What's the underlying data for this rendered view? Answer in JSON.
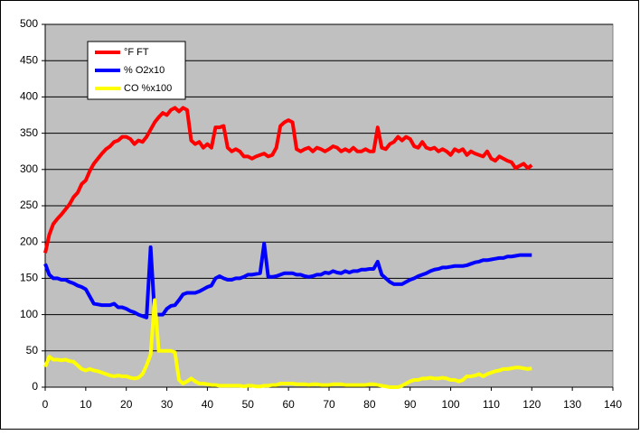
{
  "chart_data": {
    "type": "line",
    "x": [
      0,
      1,
      2,
      3,
      4,
      5,
      6,
      7,
      8,
      9,
      10,
      11,
      12,
      13,
      14,
      15,
      16,
      17,
      18,
      19,
      20,
      21,
      22,
      23,
      24,
      25,
      26,
      27,
      28,
      29,
      30,
      31,
      32,
      33,
      34,
      35,
      36,
      37,
      38,
      39,
      40,
      41,
      42,
      43,
      44,
      45,
      46,
      47,
      48,
      49,
      50,
      51,
      52,
      53,
      54,
      55,
      56,
      57,
      58,
      59,
      60,
      61,
      62,
      63,
      64,
      65,
      66,
      67,
      68,
      69,
      70,
      71,
      72,
      73,
      74,
      75,
      76,
      77,
      78,
      79,
      80,
      81,
      82,
      83,
      84,
      85,
      86,
      87,
      88,
      89,
      90,
      91,
      92,
      93,
      94,
      95,
      96,
      97,
      98,
      99,
      100,
      101,
      102,
      103,
      104,
      105,
      106,
      107,
      108,
      109,
      110,
      111,
      112,
      113,
      114,
      115,
      116,
      117,
      118,
      119,
      120
    ],
    "series": [
      {
        "name": "°F FT",
        "color": "#ff0000",
        "values": [
          185,
          210,
          225,
          232,
          238,
          245,
          252,
          262,
          268,
          280,
          285,
          298,
          308,
          315,
          322,
          328,
          332,
          338,
          340,
          345,
          345,
          342,
          335,
          340,
          338,
          345,
          355,
          365,
          372,
          378,
          375,
          382,
          385,
          380,
          385,
          382,
          340,
          335,
          338,
          330,
          335,
          330,
          358,
          358,
          360,
          330,
          325,
          328,
          325,
          318,
          318,
          315,
          318,
          320,
          322,
          318,
          320,
          330,
          360,
          365,
          368,
          365,
          328,
          325,
          328,
          330,
          325,
          330,
          328,
          325,
          328,
          332,
          330,
          325,
          328,
          325,
          330,
          325,
          325,
          328,
          325,
          325,
          358,
          330,
          328,
          335,
          338,
          345,
          340,
          345,
          342,
          332,
          330,
          338,
          330,
          328,
          330,
          325,
          328,
          325,
          320,
          328,
          325,
          328,
          320,
          325,
          322,
          320,
          318,
          325,
          315,
          312,
          318,
          315,
          312,
          310,
          302,
          305,
          308,
          302,
          306
        ]
      },
      {
        "name": "% O2x10",
        "color": "#0000ff",
        "values": [
          170,
          155,
          150,
          150,
          148,
          148,
          145,
          143,
          140,
          138,
          135,
          125,
          115,
          114,
          113,
          113,
          113,
          115,
          110,
          110,
          108,
          105,
          103,
          100,
          98,
          96,
          193,
          100,
          100,
          100,
          108,
          112,
          113,
          120,
          128,
          130,
          130,
          130,
          132,
          135,
          138,
          140,
          150,
          153,
          150,
          148,
          148,
          150,
          150,
          152,
          155,
          155,
          156,
          157,
          198,
          152,
          152,
          153,
          155,
          157,
          157,
          157,
          155,
          155,
          153,
          152,
          153,
          155,
          155,
          158,
          157,
          160,
          158,
          157,
          160,
          158,
          160,
          160,
          162,
          162,
          163,
          163,
          173,
          155,
          150,
          145,
          142,
          142,
          142,
          145,
          148,
          150,
          153,
          155,
          157,
          160,
          162,
          163,
          165,
          165,
          166,
          167,
          167,
          167,
          168,
          170,
          172,
          173,
          175,
          175,
          176,
          177,
          178,
          178,
          180,
          180,
          181,
          182,
          182,
          182,
          182
        ]
      },
      {
        "name": "CO %x100",
        "color": "#ffff00",
        "values": [
          28,
          42,
          38,
          38,
          37,
          38,
          36,
          35,
          30,
          25,
          23,
          25,
          23,
          22,
          20,
          18,
          16,
          15,
          16,
          15,
          15,
          13,
          12,
          13,
          18,
          30,
          45,
          120,
          50,
          50,
          50,
          50,
          48,
          10,
          5,
          8,
          12,
          8,
          5,
          5,
          4,
          3,
          3,
          2,
          2,
          2,
          2,
          2,
          2,
          1,
          2,
          2,
          1,
          1,
          2,
          2,
          3,
          3,
          5,
          5,
          5,
          5,
          4,
          4,
          4,
          3,
          4,
          4,
          3,
          3,
          3,
          4,
          4,
          4,
          3,
          3,
          3,
          3,
          3,
          3,
          4,
          4,
          3,
          2,
          1,
          0,
          0,
          0,
          2,
          5,
          8,
          10,
          10,
          12,
          12,
          13,
          12,
          12,
          13,
          12,
          10,
          10,
          8,
          10,
          15,
          15,
          16,
          18,
          15,
          18,
          20,
          22,
          23,
          25,
          25,
          26,
          27,
          27,
          26,
          25,
          26
        ]
      }
    ],
    "xlim": [
      0,
      140
    ],
    "xticks": [
      0,
      10,
      20,
      30,
      40,
      50,
      60,
      70,
      80,
      90,
      100,
      110,
      120,
      130,
      140
    ],
    "ylim": [
      0,
      500
    ],
    "yticks": [
      0,
      50,
      100,
      150,
      200,
      250,
      300,
      350,
      400,
      450,
      500
    ],
    "grid": true,
    "legend": "upper-left"
  }
}
